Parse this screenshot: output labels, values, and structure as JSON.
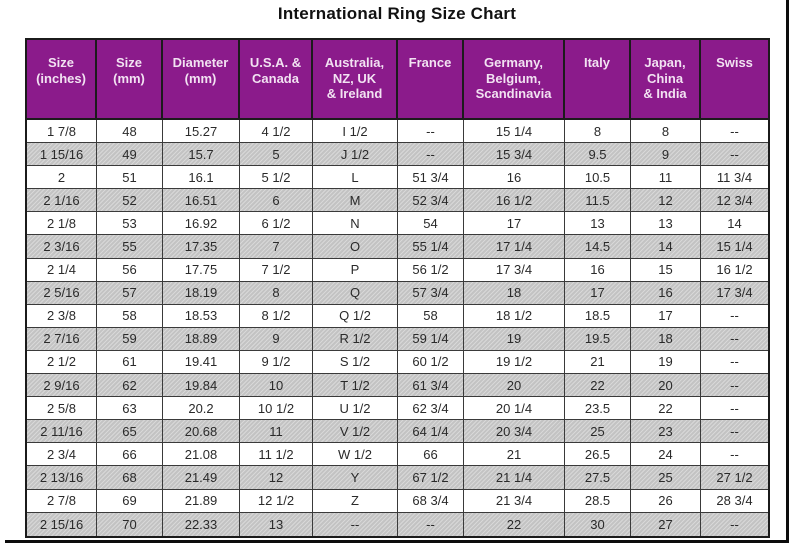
{
  "title": "International Ring Size Chart",
  "colors": {
    "header_bg": "#8B1B8B",
    "header_text": "#F2E2F2",
    "row_bg": "#FFFFFF",
    "row_alt_bg": "#C9C9C9",
    "border": "#1B1B1B",
    "title_text": "#111111"
  },
  "chart_data": {
    "type": "table",
    "title": "International Ring Size Chart",
    "columns": [
      "Size\n(inches)",
      "Size\n(mm)",
      "Diameter\n(mm)",
      "U.S.A. &\nCanada",
      "Australia,\nNZ, UK\n& Ireland",
      "France",
      "Germany,\nBelgium,\nScandinavia",
      "Italy",
      "Japan,\nChina\n& India",
      "Swiss"
    ],
    "rows": [
      [
        "1 7/8",
        "48",
        "15.27",
        "4 1/2",
        "I 1/2",
        "--",
        "15 1/4",
        "8",
        "8",
        "--"
      ],
      [
        "1 15/16",
        "49",
        "15.7",
        "5",
        "J 1/2",
        "--",
        "15 3/4",
        "9.5",
        "9",
        "--"
      ],
      [
        "2",
        "51",
        "16.1",
        "5 1/2",
        "L",
        "51 3/4",
        "16",
        "10.5",
        "11",
        "11 3/4"
      ],
      [
        "2 1/16",
        "52",
        "16.51",
        "6",
        "M",
        "52 3/4",
        "16 1/2",
        "11.5",
        "12",
        "12 3/4"
      ],
      [
        "2 1/8",
        "53",
        "16.92",
        "6 1/2",
        "N",
        "54",
        "17",
        "13",
        "13",
        "14"
      ],
      [
        "2 3/16",
        "55",
        "17.35",
        "7",
        "O",
        "55 1/4",
        "17 1/4",
        "14.5",
        "14",
        "15 1/4"
      ],
      [
        "2 1/4",
        "56",
        "17.75",
        "7 1/2",
        "P",
        "56 1/2",
        "17 3/4",
        "16",
        "15",
        "16 1/2"
      ],
      [
        "2 5/16",
        "57",
        "18.19",
        "8",
        "Q",
        "57 3/4",
        "18",
        "17",
        "16",
        "17 3/4"
      ],
      [
        "2 3/8",
        "58",
        "18.53",
        "8 1/2",
        "Q 1/2",
        "58",
        "18 1/2",
        "18.5",
        "17",
        "--"
      ],
      [
        "2 7/16",
        "59",
        "18.89",
        "9",
        "R 1/2",
        "59 1/4",
        "19",
        "19.5",
        "18",
        "--"
      ],
      [
        "2 1/2",
        "61",
        "19.41",
        "9 1/2",
        "S 1/2",
        "60 1/2",
        "19 1/2",
        "21",
        "19",
        "--"
      ],
      [
        "2 9/16",
        "62",
        "19.84",
        "10",
        "T 1/2",
        "61 3/4",
        "20",
        "22",
        "20",
        "--"
      ],
      [
        "2 5/8",
        "63",
        "20.2",
        "10 1/2",
        "U 1/2",
        "62 3/4",
        "20 1/4",
        "23.5",
        "22",
        "--"
      ],
      [
        "2 11/16",
        "65",
        "20.68",
        "11",
        "V 1/2",
        "64 1/4",
        "20 3/4",
        "25",
        "23",
        "--"
      ],
      [
        "2 3/4",
        "66",
        "21.08",
        "11 1/2",
        "W 1/2",
        "66",
        "21",
        "26.5",
        "24",
        "--"
      ],
      [
        "2 13/16",
        "68",
        "21.49",
        "12",
        "Y",
        "67 1/2",
        "21 1/4",
        "27.5",
        "25",
        "27 1/2"
      ],
      [
        "2 7/8",
        "69",
        "21.89",
        "12 1/2",
        "Z",
        "68 3/4",
        "21 3/4",
        "28.5",
        "26",
        "28 3/4"
      ],
      [
        "2 15/16",
        "70",
        "22.33",
        "13",
        "--",
        "--",
        "22",
        "30",
        "27",
        "--"
      ]
    ]
  }
}
